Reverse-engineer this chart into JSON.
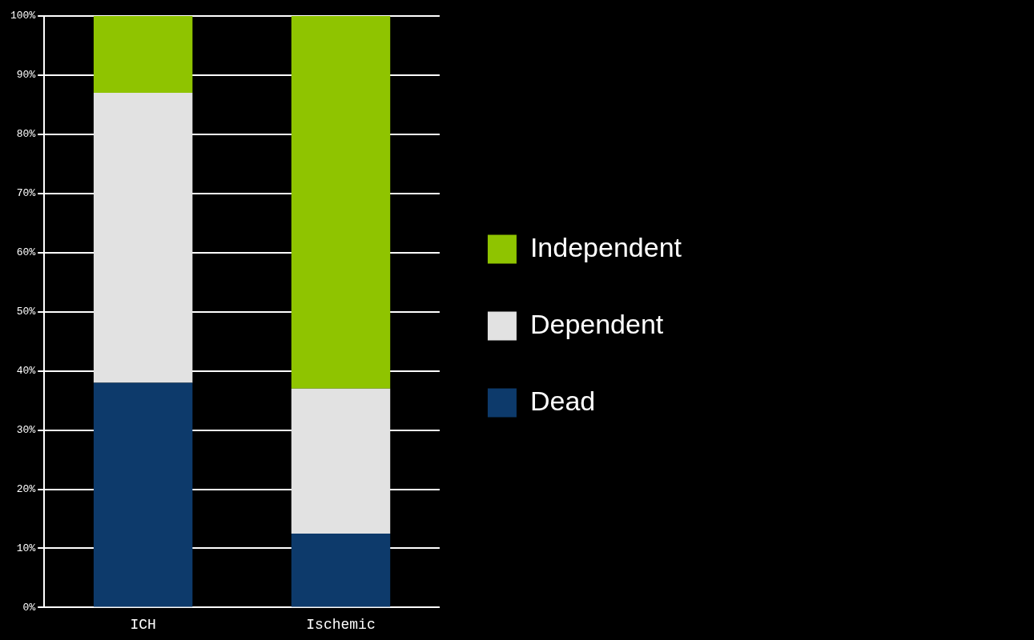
{
  "chart_data": {
    "type": "bar",
    "stacked": true,
    "categories": [
      "ICH",
      "Ischemic"
    ],
    "series": [
      {
        "name": "Dead",
        "color": "#0d3a6b",
        "values": [
          38,
          12.5
        ]
      },
      {
        "name": "Dependent",
        "color": "#e2e2e2",
        "values": [
          49,
          24.5
        ]
      },
      {
        "name": "Independent",
        "color": "#8fc400",
        "values": [
          13,
          63
        ]
      }
    ],
    "ylim": [
      0,
      100
    ],
    "yticks": [
      {
        "value": 0,
        "label": "0%"
      },
      {
        "value": 10,
        "label": "10%"
      },
      {
        "value": 20,
        "label": "20%"
      },
      {
        "value": 30,
        "label": "30%"
      },
      {
        "value": 40,
        "label": "40%"
      },
      {
        "value": 50,
        "label": "50%"
      },
      {
        "value": 60,
        "label": "60%"
      },
      {
        "value": 70,
        "label": "70%"
      },
      {
        "value": 80,
        "label": "80%"
      },
      {
        "value": 90,
        "label": "90%"
      },
      {
        "value": 100,
        "label": "100%"
      }
    ],
    "grid": "y",
    "legend": "right"
  }
}
